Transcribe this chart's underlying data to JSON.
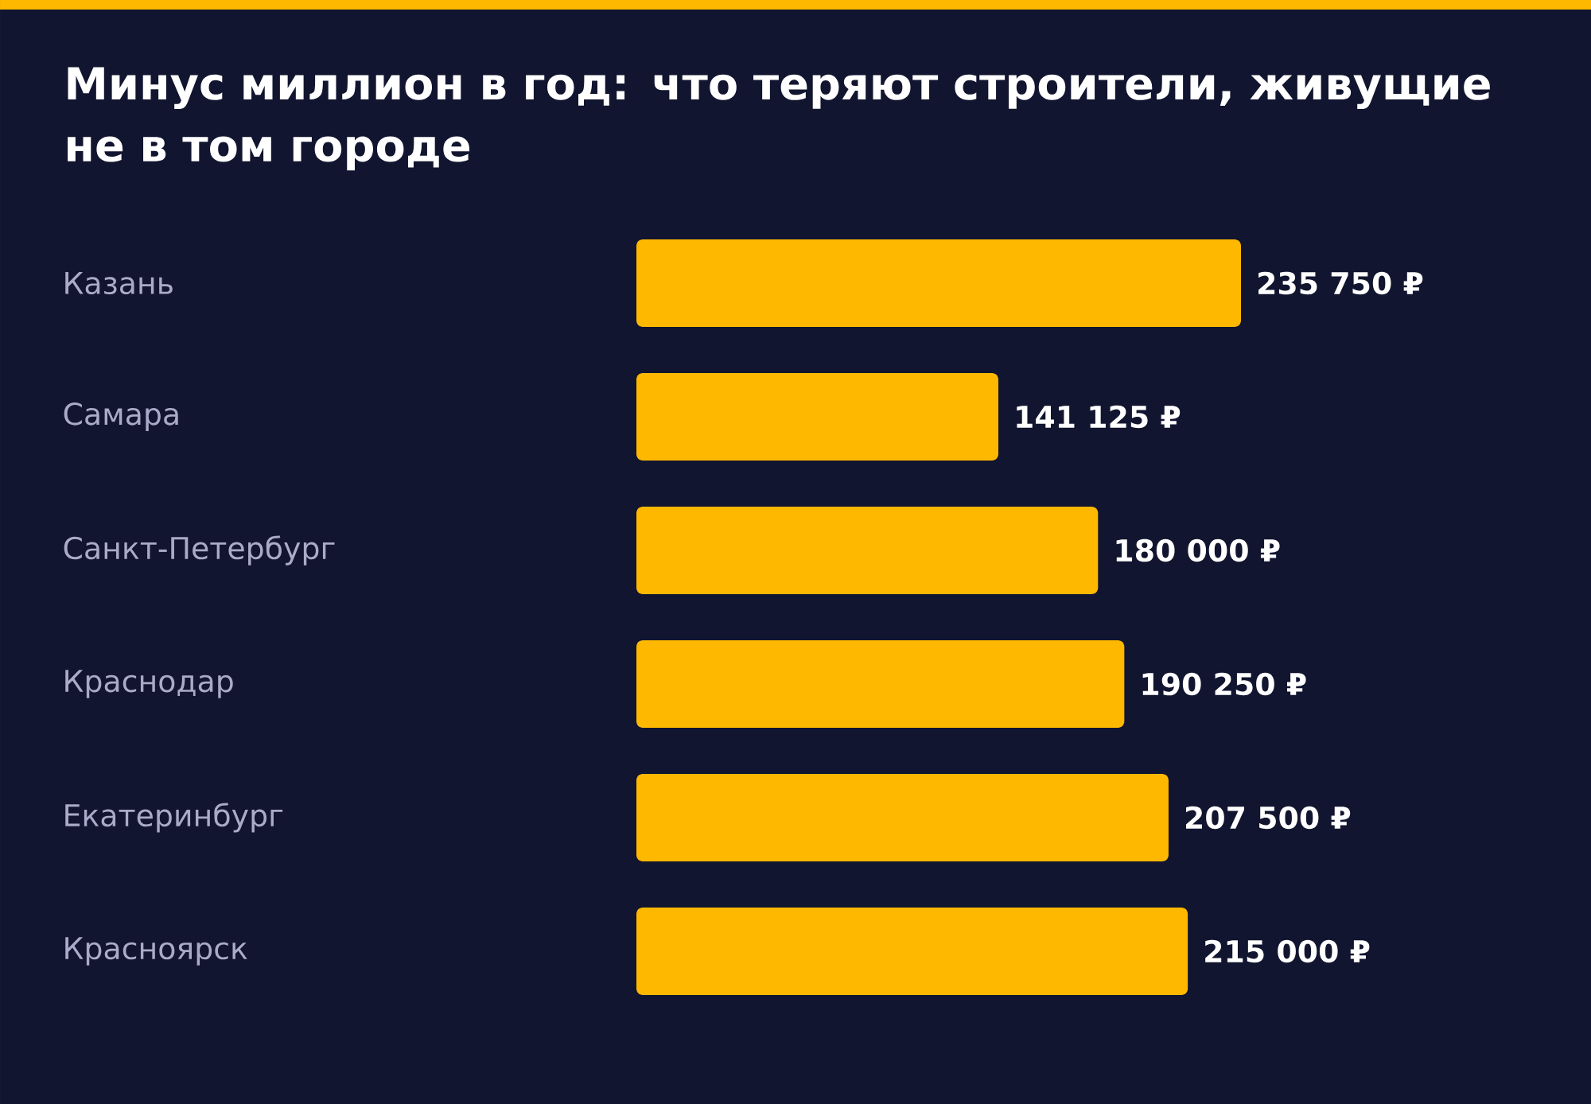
{
  "chart_data": {
    "type": "bar",
    "orientation": "horizontal",
    "title": "Минус миллион в год: что теряют строители, живущие не в том городе",
    "categories": [
      "Казань",
      "Самара",
      "Санкт-Петербург",
      "Краснодар",
      "Екатеринбург",
      "Красноярск"
    ],
    "values": [
      235750,
      141125,
      180000,
      190250,
      207500,
      215000
    ],
    "color": "#ffb800",
    "value_labels": [
      "235 750 ₽",
      "141 125 ₽",
      "180 000 ₽",
      "190 250 ₽",
      "207 500 ₽",
      "215 000 ₽"
    ]
  }
}
